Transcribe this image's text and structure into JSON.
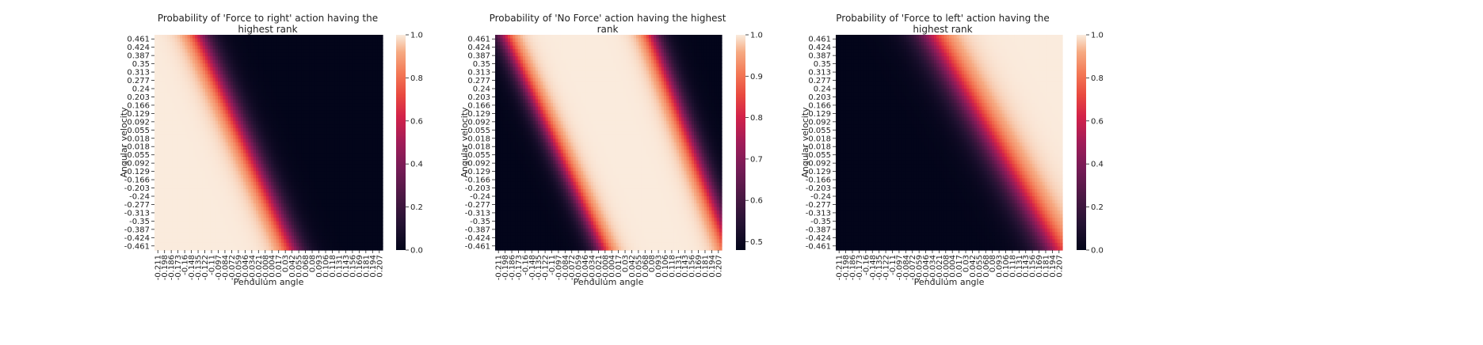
{
  "chart_data": [
    {
      "type": "heatmap",
      "title": "Probability of 'Force to right' action having the highest rank",
      "xlabel": "Pendulum angle",
      "ylabel": "Angular velocity",
      "x_ticks": [
        "-0.211",
        "-0.198",
        "-0.186",
        "-0.173",
        "-0.16",
        "-0.148",
        "-0.135",
        "-0.122",
        "-0.11",
        "-0.097",
        "-0.084",
        "-0.072",
        "-0.059",
        "-0.046",
        "-0.034",
        "-0.021",
        "-0.008",
        "0.004",
        "0.017",
        "0.03",
        "0.042",
        "0.055",
        "0.068",
        "0.08",
        "0.093",
        "0.106",
        "0.118",
        "0.131",
        "0.143",
        "0.156",
        "0.169",
        "0.181",
        "0.194",
        "0.207"
      ],
      "y_ticks": [
        "0.461",
        "0.424",
        "0.387",
        "0.35",
        "0.313",
        "0.277",
        "0.24",
        "0.203",
        "0.166",
        "0.129",
        "0.092",
        "0.055",
        "0.018",
        "-0.018",
        "-0.055",
        "-0.092",
        "-0.129",
        "-0.166",
        "-0.203",
        "-0.24",
        "-0.277",
        "-0.313",
        "-0.35",
        "-0.387",
        "-0.424",
        "-0.461"
      ],
      "colorbar": {
        "range": [
          0.0,
          1.0
        ],
        "ticks": [
          "0.0",
          "0.2",
          "0.4",
          "0.6",
          "0.8",
          "1.0"
        ]
      },
      "colormap": "rocket",
      "surface": {
        "kind": "high_left",
        "center_top": -0.127,
        "center_bottom": 0.045,
        "width": 0.014
      }
    },
    {
      "type": "heatmap",
      "title": "Probability of 'No Force' action having the highest rank",
      "xlabel": "Pendulum angle",
      "ylabel": "Angular velocity",
      "x_ticks": [
        "-0.211",
        "-0.198",
        "-0.186",
        "-0.173",
        "-0.16",
        "-0.148",
        "-0.135",
        "-0.122",
        "-0.11",
        "-0.097",
        "-0.084",
        "-0.072",
        "-0.059",
        "-0.046",
        "-0.034",
        "-0.021",
        "-0.008",
        "0.004",
        "0.017",
        "0.03",
        "0.042",
        "0.055",
        "0.068",
        "0.08",
        "0.093",
        "0.106",
        "0.118",
        "0.131",
        "0.143",
        "0.156",
        "0.169",
        "0.181",
        "0.194",
        "0.207"
      ],
      "y_ticks": [
        "0.461",
        "0.424",
        "0.387",
        "0.35",
        "0.313",
        "0.277",
        "0.24",
        "0.203",
        "0.166",
        "0.129",
        "0.092",
        "0.055",
        "0.018",
        "-0.018",
        "-0.055",
        "-0.092",
        "-0.129",
        "-0.166",
        "-0.203",
        "-0.24",
        "-0.277",
        "-0.313",
        "-0.35",
        "-0.387",
        "-0.424",
        "-0.461"
      ],
      "colorbar": {
        "range": [
          0.48,
          1.0
        ],
        "ticks": [
          "0.5",
          "0.6",
          "0.7",
          "0.8",
          "0.9",
          "1.0"
        ]
      },
      "colormap": "rocket",
      "surface": {
        "kind": "band",
        "left_center_top": -0.197,
        "left_center_bottom": -0.015,
        "right_center_top": 0.08,
        "right_center_bottom": 0.225,
        "width": 0.012
      }
    },
    {
      "type": "heatmap",
      "title": "Probability of 'Force to left' action having the highest rank",
      "xlabel": "Pendulum angle",
      "ylabel": "Angular velocity",
      "x_ticks": [
        "-0.211",
        "-0.198",
        "-0.186",
        "-0.173",
        "-0.16",
        "-0.148",
        "-0.135",
        "-0.122",
        "-0.11",
        "-0.097",
        "-0.084",
        "-0.072",
        "-0.059",
        "-0.046",
        "-0.034",
        "-0.021",
        "-0.008",
        "0.004",
        "0.017",
        "0.03",
        "0.042",
        "0.055",
        "0.068",
        "0.08",
        "0.093",
        "0.106",
        "0.118",
        "0.131",
        "0.143",
        "0.156",
        "0.169",
        "0.181",
        "0.194",
        "0.207"
      ],
      "y_ticks": [
        "0.461",
        "0.424",
        "0.387",
        "0.35",
        "0.313",
        "0.277",
        "0.24",
        "0.203",
        "0.166",
        "0.129",
        "0.092",
        "0.055",
        "0.018",
        "-0.018",
        "-0.055",
        "-0.092",
        "-0.129",
        "-0.166",
        "-0.203",
        "-0.24",
        "-0.277",
        "-0.313",
        "-0.35",
        "-0.387",
        "-0.424",
        "-0.461"
      ],
      "colorbar": {
        "range": [
          0.0,
          1.0
        ],
        "ticks": [
          "0.0",
          "0.2",
          "0.4",
          "0.6",
          "0.8",
          "1.0"
        ]
      },
      "colormap": "rocket",
      "surface": {
        "kind": "high_right",
        "center_top": -0.04,
        "center_bottom": 0.19,
        "width": 0.02
      }
    }
  ]
}
